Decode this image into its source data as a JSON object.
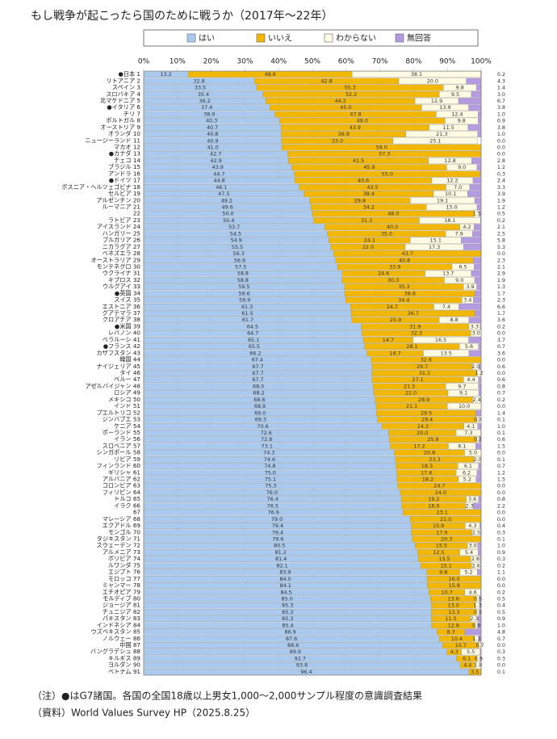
{
  "chart_data": {
    "type": "stacked-bar-horizontal",
    "title": "もし戦争が起こったら国のために戦うか（2017年〜22年）",
    "notes": [
      "（注）●はG7諸国。各国の全国18歳以上男女1,000〜2,000サンプル程度の意識調査結果",
      "（資料）World Values Survey HP（2025.8.25）"
    ],
    "xlim": [
      0,
      100
    ],
    "xticks": [
      {
        "value": 0,
        "label": "0%"
      },
      {
        "value": 10,
        "label": "10%"
      },
      {
        "value": 20,
        "label": "20%"
      },
      {
        "value": 30,
        "label": "30%"
      },
      {
        "value": 40,
        "label": "40%"
      },
      {
        "value": 50,
        "label": "50%"
      },
      {
        "value": 60,
        "label": "60%"
      },
      {
        "value": 70,
        "label": "70%"
      },
      {
        "value": 80,
        "label": "80%"
      },
      {
        "value": 90,
        "label": "90%"
      },
      {
        "value": 100,
        "label": "100%"
      }
    ],
    "grid": true,
    "categories": [
      "●日本 1",
      "リトアニア 2",
      "スペイン 3",
      "スロバキア 4",
      "北マケドニア 5",
      "●イタリア 6",
      "チリ 7",
      "ポルトガル 8",
      "オーストリア 9",
      "オランダ 10",
      "ニュージーランド 11",
      "マカオ 12",
      "●カナダ 13",
      "チェコ 14",
      "ブラジル 15",
      "アンドラ 16",
      "●ドイツ 17",
      "ボスニア・ヘルツェゴビナ 18",
      "セルビア 19",
      "アルゼンチン 20",
      "ルーマニア 21",
      "22",
      "ラトビア 23",
      "アイスランド 24",
      "ハンガリー 25",
      "ブルガリア 26",
      "ニカラグア 27",
      "ベネズエラ 28",
      "オーストラリア 29",
      "モンテネグロ 30",
      "ウクライナ 31",
      "キプロス 32",
      "ウルグアイ 33",
      "●英国 34",
      "スイス 35",
      "エストニア 36",
      "グアテマラ 37",
      "クロアチア 38",
      "●米国 39",
      "レバノン 40",
      "ベラルーシ 41",
      "●フランス 42",
      "カザフスタン 43",
      "韓国 44",
      "ナイジェリア 45",
      "タイ 46",
      "ペルー 47",
      "アゼルバイジャン 48",
      "ロシア 49",
      "メキシコ 50",
      "インド 51",
      "プエルトリコ 52",
      "ジンバブエ 53",
      "ケニア 54",
      "ポーランド 55",
      "イラン 56",
      "スロベニア 57",
      "シンガポール 58",
      "リビア 59",
      "フィンランド 60",
      "ギリシャ 61",
      "アルバニア 62",
      "コロンビア 63",
      "フィリピン 64",
      "トルコ 65",
      "イラク 66",
      "67",
      "マレーシア 68",
      "エクアドル 69",
      "モンゴル 70",
      "タジキスタン 71",
      "スウェーデン 72",
      "アルメニア 73",
      "ボリビア 74",
      "ルワンダ 75",
      "エジプト 76",
      "モロッコ 77",
      "ミャンマー 78",
      "エチオピア 79",
      "モルディブ 80",
      "ジョージア 81",
      "チュニジア 82",
      "パキスタン 83",
      "インドネシア 84",
      "ウズベキスタン 85",
      "ノルウェー 86",
      "中国 87",
      "バングラデシュ 88",
      "キルギス 89",
      "ヨルダン 90",
      "ベトナム 91"
    ],
    "series": [
      {
        "name": "はい",
        "color": "#a9c9ee",
        "values": [
          13.2,
          32.8,
          33.5,
          35.4,
          36.2,
          37.4,
          38.9,
          40.3,
          40.7,
          40.8,
          40.9,
          41.0,
          42.7,
          42.9,
          43.9,
          44.7,
          44.8,
          46.1,
          47.5,
          49.2,
          49.6,
          50.0,
          50.4,
          53.7,
          54.5,
          54.9,
          55.5,
          56.3,
          56.9,
          57.5,
          58.8,
          58.8,
          59.5,
          59.6,
          59.9,
          61.3,
          61.5,
          61.7,
          64.5,
          64.7,
          65.1,
          65.5,
          66.2,
          67.4,
          67.7,
          67.7,
          67.7,
          68.0,
          68.2,
          68.6,
          68.9,
          69.0,
          69.3,
          70.6,
          72.6,
          72.8,
          73.1,
          74.3,
          74.6,
          74.8,
          75.0,
          75.1,
          75.3,
          76.0,
          76.4,
          76.5,
          76.9,
          79.0,
          79.4,
          79.4,
          79.6,
          80.5,
          81.2,
          81.4,
          82.1,
          83.9,
          84.0,
          84.1,
          84.5,
          85.0,
          85.3,
          85.3,
          85.3,
          85.4,
          86.9,
          87.6,
          88.6,
          89.9,
          92.7,
          93.8,
          96.4
        ],
        "value_labels": [
          "13.2",
          "32.8",
          "33.5",
          "35.4",
          "36.2",
          "37.4",
          "38.9",
          "40.3",
          "40.7",
          "40.8",
          "40.9",
          "41.0",
          "42.7",
          "42.9",
          "43.9",
          "44.7",
          "44.8",
          "46.1",
          "47.5",
          "49.2",
          "49.6",
          "50.0",
          "50.4",
          "53.7",
          "54.5",
          "54.9",
          "55.5",
          "56.3",
          "56.9",
          "57.5",
          "58.8",
          "58.8",
          "59.5",
          "59.6",
          "59.9",
          "61.3",
          "61.5",
          "61.7",
          "64.5",
          "64.7",
          "65.1",
          "65.5",
          "66.2",
          "67.4",
          "67.7",
          "67.7",
          "67.7",
          "68.0",
          "68.2",
          "68.6",
          "68.9",
          "69.0",
          "69.3",
          "70.6",
          "72.6",
          "72.8",
          "73.1",
          "74.3",
          "74.6",
          "74.8",
          "75.0",
          "75.1",
          "75.3",
          "76.0",
          "76.4",
          "76.5",
          "76.9",
          "79.0",
          "79.4",
          "79.4",
          "79.6",
          "80.5",
          "81.2",
          "81.4",
          "82.1",
          "83.9",
          "84.0",
          "84.1",
          "84.5",
          "85.0",
          "85.3",
          "85.3",
          "85.3",
          "85.4",
          "86.9",
          "87.6",
          "88.6",
          "89.9",
          "92.7",
          "93.8",
          "96.4"
        ]
      },
      {
        "name": "いいえ",
        "color": "#f2b705",
        "values": [
          48.6,
          42.8,
          55.3,
          52.2,
          44.2,
          45.0,
          47.8,
          49.0,
          43.9,
          36.9,
          33.0,
          59.0,
          57.3,
          41.5,
          45.9,
          55.0,
          40.6,
          43.5,
          38.4,
          29.8,
          34.2,
          48.0,
          31.3,
          40.0,
          35.0,
          24.1,
          22.0,
          43.7,
          40.8,
          33.9,
          24.6,
          30.3,
          35.3,
          38.6,
          34.4,
          24.7,
          36.7,
          25.9,
          31.9,
          32.3,
          14.7,
          28.1,
          16.7,
          32.6,
          29.7,
          31.1,
          27.1,
          21.5,
          22.0,
          28.9,
          21.1,
          29.5,
          29.4,
          24.3,
          20.0,
          25.9,
          17.2,
          20.8,
          23.3,
          18.3,
          17.6,
          18.2,
          24.7,
          24.0,
          19.2,
          18.9,
          23.1,
          21.0,
          15.9,
          17.9,
          20.3,
          15.5,
          12.5,
          15.5,
          15.1,
          9.8,
          16.0,
          15.9,
          10.7,
          13.6,
          13.0,
          13.3,
          11.5,
          12.8,
          8.3,
          10.4,
          10.7,
          4.3,
          6.1,
          4.4,
          3.5
        ],
        "value_labels": [
          "48.6",
          "42.8",
          "55.3",
          "52.2",
          "44.2",
          "45.0",
          "47.8",
          "49.0",
          "43.9",
          "36.9",
          "33.0",
          "59.0",
          "57.3",
          "41.5",
          "45.9",
          "55.0",
          "40.6",
          "43.5",
          "38.4",
          "29.8",
          "34.2",
          "48.0",
          "31.3",
          "40.0",
          "35.0",
          "24.1",
          "22.0",
          "43.7",
          "40.8",
          "33.9",
          "24.6",
          "30.3",
          "35.3",
          "38.6",
          "34.4",
          "24.7",
          "36.7",
          "25.9",
          "31.9",
          "32.3",
          "14.7",
          "28.1",
          "16.7",
          "32.6",
          "29.7",
          "31.1",
          "27.1",
          "21.5",
          "22.0",
          "28.9",
          "21.1",
          "29.5",
          "29.4",
          "24.3",
          "20.0",
          "25.9",
          "17.2",
          "20.8",
          "23.3",
          "18.3",
          "17.6",
          "18.2",
          "24.7",
          "24.0",
          "19.2",
          "18.9",
          "23.1",
          "21.0",
          "15.9",
          "17.9",
          "20.3",
          "15.5",
          "12.5",
          "15.5",
          "15.1",
          "9.8",
          "16.0",
          "15.9",
          "10.7",
          "13.6",
          "13.0",
          "13.3",
          "11.5",
          "12.8",
          "8.3",
          "10.4",
          "10.7",
          "4.3",
          "6.1",
          "4.4",
          "3.5"
        ]
      },
      {
        "name": "わからない",
        "color": "#fffbe3",
        "values": [
          38.1,
          20.0,
          9.8,
          9.5,
          12.9,
          13.9,
          12.4,
          9.8,
          11.5,
          21.3,
          25.1,
          0,
          0,
          12.8,
          9.0,
          0,
          12.2,
          7.0,
          10.1,
          19.1,
          15.0,
          1.5,
          18.1,
          4.2,
          7.9,
          15.1,
          17.3,
          0,
          0,
          6.5,
          13.7,
          9.0,
          3.9,
          0,
          3.4,
          7.4,
          0,
          8.8,
          3.3,
          3.0,
          16.5,
          5.6,
          13.5,
          0,
          2.0,
          1.2,
          4.4,
          9.7,
          9.1,
          2.4,
          10.0,
          0,
          0.7,
          4.1,
          7.3,
          0.7,
          8.1,
          5.0,
          2.0,
          6.1,
          6.2,
          5.2,
          0,
          0,
          3.6,
          2.3,
          0,
          0,
          4.3,
          2.5,
          0,
          3.0,
          5.4,
          2.8,
          2.6,
          5.2,
          0,
          0,
          4.6,
          0.9,
          1.3,
          0.9,
          2.3,
          0.8,
          0,
          1.3,
          0.7,
          5.5,
          0.9,
          1.8,
          0
        ],
        "value_labels": [
          "38.1",
          "20.0",
          "9.8",
          "9.5",
          "12.9",
          "13.9",
          "12.4",
          "9.8",
          "11.5",
          "21.3",
          "25.1",
          null,
          null,
          "12.8",
          "9.0",
          null,
          "12.2",
          "7.0",
          "10.1",
          "19.1",
          "15.0",
          "1.5",
          "18.1",
          "4.2",
          "7.9",
          "15.1",
          "17.3",
          null,
          null,
          "6.5",
          "13.7",
          "9.0",
          "3.9",
          null,
          "3.4",
          "7.4",
          null,
          "8.8",
          "3.3",
          "3.0",
          "16.5",
          "5.6",
          "13.5",
          null,
          "2.0",
          "1.2",
          "4.4",
          "9.7",
          "9.1",
          "2.4",
          "10.0",
          null,
          "0.7",
          "4.1",
          "7.3",
          "0.7",
          "8.1",
          "5.0",
          "2.0",
          "6.1",
          "6.2",
          "5.2",
          null,
          null,
          "3.6",
          "2.3",
          null,
          null,
          "4.3",
          "2.5",
          null,
          "3.0",
          "5.4",
          "2.8",
          "2.6",
          "5.2",
          null,
          null,
          "4.6",
          "0.9",
          "1.3",
          "0.9",
          "2.3",
          "0.8",
          null,
          "1.3",
          "0.7",
          "5.5",
          "0.9",
          "1.8",
          null
        ]
      },
      {
        "name": "無回答",
        "color": "#b49be0",
        "values": [
          0.2,
          4.3,
          1.4,
          3.0,
          6.7,
          3.8,
          1.0,
          0.9,
          3.8,
          1.0,
          0.0,
          0.0,
          0.0,
          2.8,
          1.2,
          0.3,
          2.4,
          3.3,
          3.9,
          1.9,
          1.2,
          0.5,
          0.2,
          2.1,
          2.5,
          5.8,
          5.3,
          0.0,
          2.3,
          2.1,
          2.9,
          1.9,
          1.3,
          1.7,
          2.3,
          6.6,
          1.7,
          3.6,
          0.2,
          0.0,
          3.7,
          0.7,
          3.6,
          0.0,
          0.6,
          0.0,
          0.6,
          0.8,
          0.7,
          0.2,
          0.0,
          1.4,
          0.1,
          1.0,
          0.1,
          0.6,
          1.5,
          0.0,
          0.1,
          0.7,
          1.2,
          1.5,
          0.0,
          0.0,
          0.8,
          2.2,
          0.0,
          0.0,
          0.4,
          0.3,
          0.1,
          1.0,
          0.9,
          0.3,
          0.2,
          1.1,
          0.0,
          0.0,
          0.2,
          0.5,
          0.4,
          0.5,
          0.9,
          1.0,
          4.8,
          0.7,
          0.0,
          0.3,
          0.3,
          0.0,
          0.1
        ],
        "value_labels": [
          "0.2",
          "4.3",
          "1.4",
          "3.0",
          "6.7",
          "3.8",
          "1.0",
          "0.9",
          "3.8",
          "1.0",
          "0.0",
          "0.0",
          "0.0",
          "2.8",
          "1.2",
          "0.3",
          "2.4",
          "3.3",
          "3.9",
          "1.9",
          "1.2",
          "0.5",
          "0.2",
          "2.1",
          "2.5",
          "5.8",
          "5.3",
          "0.0",
          "2.3",
          "2.1",
          "2.9",
          "1.9",
          "1.3",
          "1.7",
          "2.3",
          "6.6",
          "1.7",
          "3.6",
          "0.2",
          "0.0",
          "3.7",
          "0.7",
          "3.6",
          "0.0",
          "0.6",
          "0.0",
          "0.6",
          "0.8",
          "0.7",
          "0.2",
          "0.0",
          "1.4",
          "0.1",
          "1.0",
          "0.1",
          "0.6",
          "1.5",
          "0.0",
          "0.1",
          "0.7",
          "1.2",
          "1.5",
          "0.0",
          "0.0",
          "0.8",
          "2.2",
          "0.0",
          "0.0",
          "0.4",
          "0.3",
          "0.1",
          "1.0",
          "0.9",
          "0.3",
          "0.2",
          "1.1",
          "0.0",
          "0.0",
          "0.2",
          "0.5",
          "0.4",
          "0.5",
          "0.9",
          "1.0",
          "4.8",
          "0.7",
          "0.0",
          "0.3",
          "0.3",
          "0.0",
          "0.1"
        ]
      }
    ]
  }
}
